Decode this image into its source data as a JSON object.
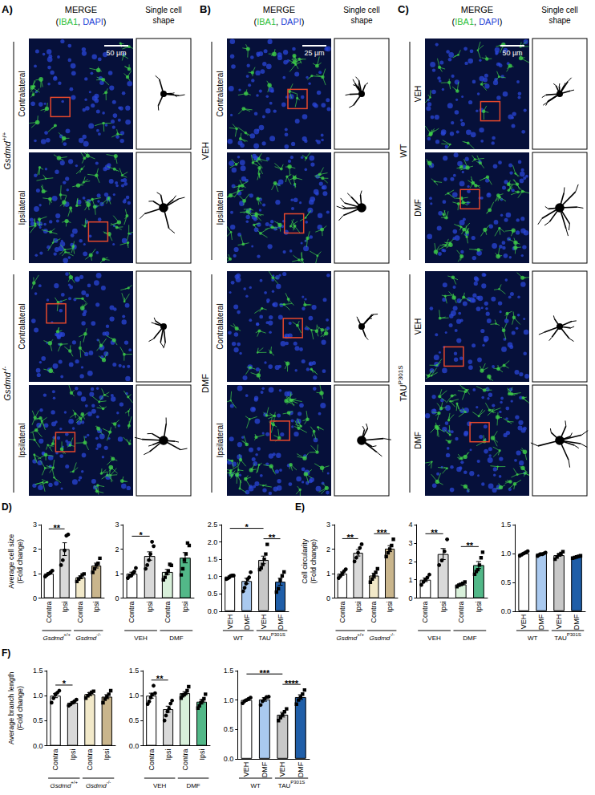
{
  "image_panels": [
    {
      "panel": "A)",
      "merge_title": "MERGE",
      "stains": [
        {
          "text": "("
        },
        {
          "text": "IBA1",
          "color": "#2fbf3a"
        },
        {
          "text": ", "
        },
        {
          "text": "DAPI",
          "color": "#1f3fd6"
        },
        {
          "text": ")"
        }
      ],
      "shape_title": "Single cell shape",
      "scale_bar": "50 µm",
      "groups": [
        {
          "label": {
            "base": "Gsdmd",
            "sup": "+/+",
            "italic": true
          },
          "rows": [
            "Contralateral",
            "Ipsilateral"
          ]
        },
        {
          "label": {
            "base": "Gsdmd",
            "sup": "-/-",
            "italic": true
          },
          "rows": [
            "Contralateral",
            "Ipsilateral"
          ]
        }
      ]
    },
    {
      "panel": "B)",
      "merge_title": "MERGE",
      "stains": [
        {
          "text": "("
        },
        {
          "text": "IBA1",
          "color": "#2fbf3a"
        },
        {
          "text": ", "
        },
        {
          "text": "DAPI",
          "color": "#1f3fd6"
        },
        {
          "text": ")"
        }
      ],
      "shape_title": "Single cell shape",
      "scale_bar": "25 µm",
      "groups": [
        {
          "label": {
            "base": "VEH"
          },
          "rows": [
            "Contralateral",
            "Ipsilateral"
          ]
        },
        {
          "label": {
            "base": "DMF"
          },
          "rows": [
            "Contralateral",
            "Ipsilateral"
          ]
        }
      ]
    },
    {
      "panel": "C)",
      "merge_title": "MERGE",
      "stains": [
        {
          "text": "("
        },
        {
          "text": "IBA1",
          "color": "#2fbf3a"
        },
        {
          "text": ", "
        },
        {
          "text": "DAPI",
          "color": "#1f3fd6"
        },
        {
          "text": ")"
        }
      ],
      "shape_title": "Single cell shape",
      "scale_bar": "50 µm",
      "groups": [
        {
          "label": {
            "base": "WT"
          },
          "rows": [
            "VEH",
            "DMF"
          ]
        },
        {
          "label": {
            "base": "TAU",
            "sup": "P301S"
          },
          "rows": [
            "VEH",
            "DMF"
          ]
        }
      ]
    }
  ],
  "chart_data": [
    {
      "type": "bar",
      "panel": "D)",
      "y_label": "Average cell size (Fold change)",
      "grid": false,
      "categories": [
        "Contra",
        "Ipsi",
        "Contra",
        "Ipsi"
      ],
      "groups": [
        {
          "label": {
            "base": "Gsdmd",
            "sup": "+/+",
            "italic": true
          },
          "span": [
            0,
            1
          ],
          "marker": "circle"
        },
        {
          "label": {
            "base": "Gsdmd",
            "sup": "-/-",
            "italic": true
          },
          "span": [
            2,
            3
          ],
          "marker": "square"
        }
      ],
      "colors": [
        "#ffffff",
        "#d9d9d9",
        "#f2e9c9",
        "#c9b58c"
      ],
      "values": [
        1.0,
        2.0,
        0.85,
        1.33
      ],
      "errors": [
        0.04,
        0.26,
        0.06,
        0.1
      ],
      "points": [
        [
          0.88,
          0.95,
          1.0,
          1.05,
          1.12
        ],
        [
          1.35,
          1.55,
          1.95,
          2.55,
          2.6
        ],
        [
          0.68,
          0.78,
          0.85,
          0.95,
          0.99
        ],
        [
          1.05,
          1.2,
          1.35,
          1.42,
          1.63
        ]
      ],
      "ylim": [
        0,
        3
      ],
      "yticks": [
        0,
        1,
        2,
        3
      ],
      "annotations": [
        {
          "from": 0,
          "to": 1,
          "text": "**"
        }
      ]
    },
    {
      "type": "bar",
      "grid": false,
      "categories": [
        "Contra",
        "Ipsi",
        "Contra",
        "Ipsi"
      ],
      "groups": [
        {
          "label": {
            "base": "VEH"
          },
          "span": [
            0,
            1
          ],
          "marker": "circle"
        },
        {
          "label": {
            "base": "DMF"
          },
          "span": [
            2,
            3
          ],
          "marker": "square"
        }
      ],
      "colors": [
        "#ffffff",
        "#d9d9d9",
        "#d8f0da",
        "#52b888"
      ],
      "values": [
        1.0,
        1.72,
        1.07,
        1.65
      ],
      "errors": [
        0.06,
        0.17,
        0.1,
        0.21
      ],
      "points": [
        [
          0.82,
          0.9,
          0.95,
          1.02,
          1.08,
          1.23
        ],
        [
          1.2,
          1.35,
          1.55,
          1.8,
          2.3,
          2.12
        ],
        [
          0.75,
          0.85,
          1.0,
          1.1,
          1.38,
          1.34
        ],
        [
          0.95,
          1.2,
          1.55,
          1.8,
          2.25,
          2.15
        ]
      ],
      "ylim": [
        0,
        3
      ],
      "yticks": [
        0,
        1,
        2,
        3
      ],
      "annotations": [
        {
          "from": 0,
          "to": 1,
          "text": "*"
        }
      ]
    },
    {
      "type": "bar",
      "grid": false,
      "categories": [
        "VEH",
        "DMF",
        "VEH",
        "DMF"
      ],
      "groups": [
        {
          "label": {
            "base": "WT"
          },
          "span": [
            0,
            1
          ],
          "marker": "circle"
        },
        {
          "label": {
            "base": "TAU",
            "sup": "P301S"
          },
          "span": [
            2,
            3
          ],
          "marker": "square"
        }
      ],
      "colors": [
        "#ffffff",
        "#a9c9ef",
        "#c8c8c8",
        "#1f5ea8"
      ],
      "values": [
        1.0,
        0.87,
        1.48,
        0.85
      ],
      "errors": [
        0.02,
        0.08,
        0.11,
        0.1
      ],
      "points": [
        [
          0.95,
          0.97,
          1.0,
          1.02,
          1.03,
          1.03
        ],
        [
          0.6,
          0.7,
          0.82,
          0.95,
          1.0,
          1.15
        ],
        [
          1.2,
          1.25,
          1.35,
          1.5,
          1.65,
          1.93
        ],
        [
          0.55,
          0.65,
          0.9,
          1.02,
          1.13
        ]
      ],
      "ylim": [
        0,
        2.5
      ],
      "yticks": [
        {
          "value": 0,
          "label": "0.0"
        },
        0.5,
        {
          "value": 1,
          "label": "1.0"
        },
        1.5,
        {
          "value": 2,
          "label": "2.0"
        },
        2.5
      ],
      "annotations": [
        {
          "from": 0,
          "to": 2,
          "text": "*"
        },
        {
          "from": 2,
          "to": 3,
          "text": "**"
        }
      ]
    },
    {
      "type": "bar",
      "panel": "E)",
      "y_label": "Cell circularity (Fold change)",
      "grid": false,
      "categories": [
        "Contra",
        "Ipsi",
        "Contra",
        "Ipsi"
      ],
      "groups": [
        {
          "label": {
            "base": "Gsdmd",
            "sup": "+/+",
            "italic": true
          },
          "span": [
            0,
            1
          ],
          "marker": "circle"
        },
        {
          "label": {
            "base": "Gsdmd",
            "sup": "-/-",
            "italic": true
          },
          "span": [
            2,
            3
          ],
          "marker": "square"
        }
      ],
      "colors": [
        "#ffffff",
        "#d9d9d9",
        "#f2e9c9",
        "#c9b58c"
      ],
      "values": [
        1.0,
        1.85,
        0.92,
        2.02
      ],
      "errors": [
        0.07,
        0.13,
        0.1,
        0.12
      ],
      "points": [
        [
          0.82,
          0.9,
          1.0,
          1.1,
          1.18
        ],
        [
          1.5,
          1.65,
          1.85,
          2.05,
          2.2
        ],
        [
          0.65,
          0.78,
          0.92,
          1.05,
          1.2
        ],
        [
          1.7,
          1.85,
          2.0,
          2.15,
          2.4
        ]
      ],
      "ylim": [
        0,
        3
      ],
      "yticks": [
        0,
        1,
        2,
        3
      ],
      "annotations": [
        {
          "from": 0,
          "to": 1,
          "text": "**"
        },
        {
          "from": 2,
          "to": 3,
          "text": "***"
        }
      ]
    },
    {
      "type": "bar",
      "grid": false,
      "categories": [
        "Contra",
        "Ipsi",
        "Contra",
        "Ipsi"
      ],
      "groups": [
        {
          "label": {
            "base": "VEH"
          },
          "span": [
            0,
            1
          ],
          "marker": "circle"
        },
        {
          "label": {
            "base": "DMF"
          },
          "span": [
            2,
            3
          ],
          "marker": "square"
        }
      ],
      "colors": [
        "#ffffff",
        "#d9d9d9",
        "#d8f0da",
        "#52b888"
      ],
      "values": [
        1.0,
        2.4,
        0.75,
        1.8
      ],
      "errors": [
        0.1,
        0.3,
        0.05,
        0.19
      ],
      "points": [
        [
          0.72,
          0.88,
          1.0,
          1.12,
          1.28
        ],
        [
          1.8,
          2.05,
          2.55,
          3.2
        ],
        [
          0.62,
          0.7,
          0.75,
          0.8,
          0.88
        ],
        [
          1.3,
          1.45,
          1.55,
          1.8,
          2.2,
          2.5
        ]
      ],
      "ylim": [
        0,
        4
      ],
      "yticks": [
        0,
        1,
        2,
        3,
        4
      ],
      "annotations": [
        {
          "from": 0,
          "to": 1,
          "text": "**"
        },
        {
          "from": 2,
          "to": 3,
          "text": "**"
        }
      ]
    },
    {
      "type": "bar",
      "grid": false,
      "categories": [
        "VEH",
        "DMF",
        "VEH",
        "DMF"
      ],
      "groups": [
        {
          "label": {
            "base": "WT"
          },
          "span": [
            0,
            1
          ],
          "marker": "circle"
        },
        {
          "label": {
            "base": "TAU",
            "sup": "P301S"
          },
          "span": [
            2,
            3
          ],
          "marker": "square"
        }
      ],
      "colors": [
        "#ffffff",
        "#a9c9ef",
        "#c8c8c8",
        "#1f5ea8"
      ],
      "values": [
        1.0,
        1.0,
        0.97,
        0.94
      ],
      "errors": [
        0.01,
        0.01,
        0.02,
        0.01
      ],
      "points": [
        [
          0.96,
          0.98,
          1.0,
          1.02,
          1.04
        ],
        [
          0.97,
          0.99,
          1.0,
          1.0,
          1.01,
          1.03
        ],
        [
          0.9,
          0.94,
          0.98,
          1.0,
          1.03
        ],
        [
          0.92,
          0.93,
          0.94,
          0.95,
          0.96
        ]
      ],
      "ylim": [
        0,
        1.5
      ],
      "yticks": [
        {
          "value": 0,
          "label": "0.0"
        },
        0.5,
        {
          "value": 1,
          "label": "1.0"
        },
        1.5
      ],
      "annotations": []
    },
    {
      "type": "bar",
      "panel": "F)",
      "y_label": "Average branch length (Fold change)",
      "grid": false,
      "categories": [
        "Contra",
        "Ipsi",
        "Contra",
        "Ipsi"
      ],
      "groups": [
        {
          "label": {
            "base": "Gsdmd",
            "sup": "+/+",
            "italic": true
          },
          "span": [
            0,
            1
          ],
          "marker": "circle"
        },
        {
          "label": {
            "base": "Gsdmd",
            "sup": "-/-",
            "italic": true
          },
          "span": [
            2,
            3
          ],
          "marker": "square"
        }
      ],
      "colors": [
        "#ffffff",
        "#d9d9d9",
        "#f2e9c9",
        "#c9b58c"
      ],
      "values": [
        1.0,
        0.86,
        1.03,
        0.98
      ],
      "errors": [
        0.04,
        0.02,
        0.03,
        0.04
      ],
      "points": [
        [
          0.86,
          0.95,
          1.03,
          1.06,
          1.1
        ],
        [
          0.8,
          0.83,
          0.86,
          0.89,
          0.92
        ],
        [
          0.95,
          1.0,
          1.04,
          1.07,
          1.09
        ],
        [
          0.86,
          0.93,
          0.98,
          1.03,
          1.1
        ]
      ],
      "ylim": [
        0,
        1.5
      ],
      "yticks": [
        {
          "value": 0,
          "label": "0.0"
        },
        0.5,
        {
          "value": 1,
          "label": "1.0"
        },
        1.5
      ],
      "annotations": [
        {
          "from": 0,
          "to": 1,
          "text": "*"
        }
      ]
    },
    {
      "type": "bar",
      "grid": false,
      "categories": [
        "Contra",
        "Ipsi",
        "Contra",
        "Ipsi"
      ],
      "groups": [
        {
          "label": {
            "base": "VEH"
          },
          "span": [
            0,
            1
          ],
          "marker": "circle"
        },
        {
          "label": {
            "base": "DMF"
          },
          "span": [
            2,
            3
          ],
          "marker": "square"
        }
      ],
      "colors": [
        "#ffffff",
        "#d9d9d9",
        "#d8f0da",
        "#52b888"
      ],
      "values": [
        1.0,
        0.73,
        1.05,
        0.88
      ],
      "errors": [
        0.05,
        0.06,
        0.03,
        0.04
      ],
      "points": [
        [
          0.85,
          0.9,
          0.98,
          1.02,
          1.2,
          1.05
        ],
        [
          0.52,
          0.62,
          0.7,
          0.76,
          0.86,
          0.92
        ],
        [
          0.95,
          1.0,
          1.02,
          1.05,
          1.1,
          1.18
        ],
        [
          0.75,
          0.8,
          0.86,
          0.9,
          0.94,
          1.03
        ]
      ],
      "ylim": [
        0,
        1.5
      ],
      "yticks": [
        {
          "value": 0,
          "label": "0.0"
        },
        0.5,
        {
          "value": 1,
          "label": "1.0"
        },
        1.5
      ],
      "annotations": [
        {
          "from": 0,
          "to": 1,
          "text": "**"
        }
      ]
    },
    {
      "type": "bar",
      "grid": false,
      "categories": [
        "VEH",
        "DMF",
        "VEH",
        "DMF"
      ],
      "groups": [
        {
          "label": {
            "base": "WT"
          },
          "span": [
            0,
            1
          ],
          "marker": "circle"
        },
        {
          "label": {
            "base": "TAU",
            "sup": "P301S"
          },
          "span": [
            2,
            3
          ],
          "marker": "square"
        }
      ],
      "colors": [
        "#ffffff",
        "#a9c9ef",
        "#c8c8c8",
        "#1f5ea8"
      ],
      "values": [
        1.0,
        1.01,
        0.75,
        1.05
      ],
      "errors": [
        0.01,
        0.03,
        0.04,
        0.04
      ],
      "points": [
        [
          0.96,
          0.98,
          1.0,
          1.02,
          1.04
        ],
        [
          0.93,
          0.98,
          1.02,
          1.05,
          1.07
        ],
        [
          0.65,
          0.7,
          0.75,
          0.8,
          0.85
        ],
        [
          0.93,
          1.0,
          1.05,
          1.1,
          1.17
        ]
      ],
      "ylim": [
        0,
        1.5
      ],
      "yticks": [
        {
          "value": 0,
          "label": "0.0"
        },
        0.5,
        {
          "value": 1,
          "label": "1.0"
        },
        1.5
      ],
      "annotations": [
        {
          "from": 0,
          "to": 2,
          "text": "***"
        },
        {
          "from": 2,
          "to": 3,
          "text": "****"
        }
      ]
    }
  ]
}
